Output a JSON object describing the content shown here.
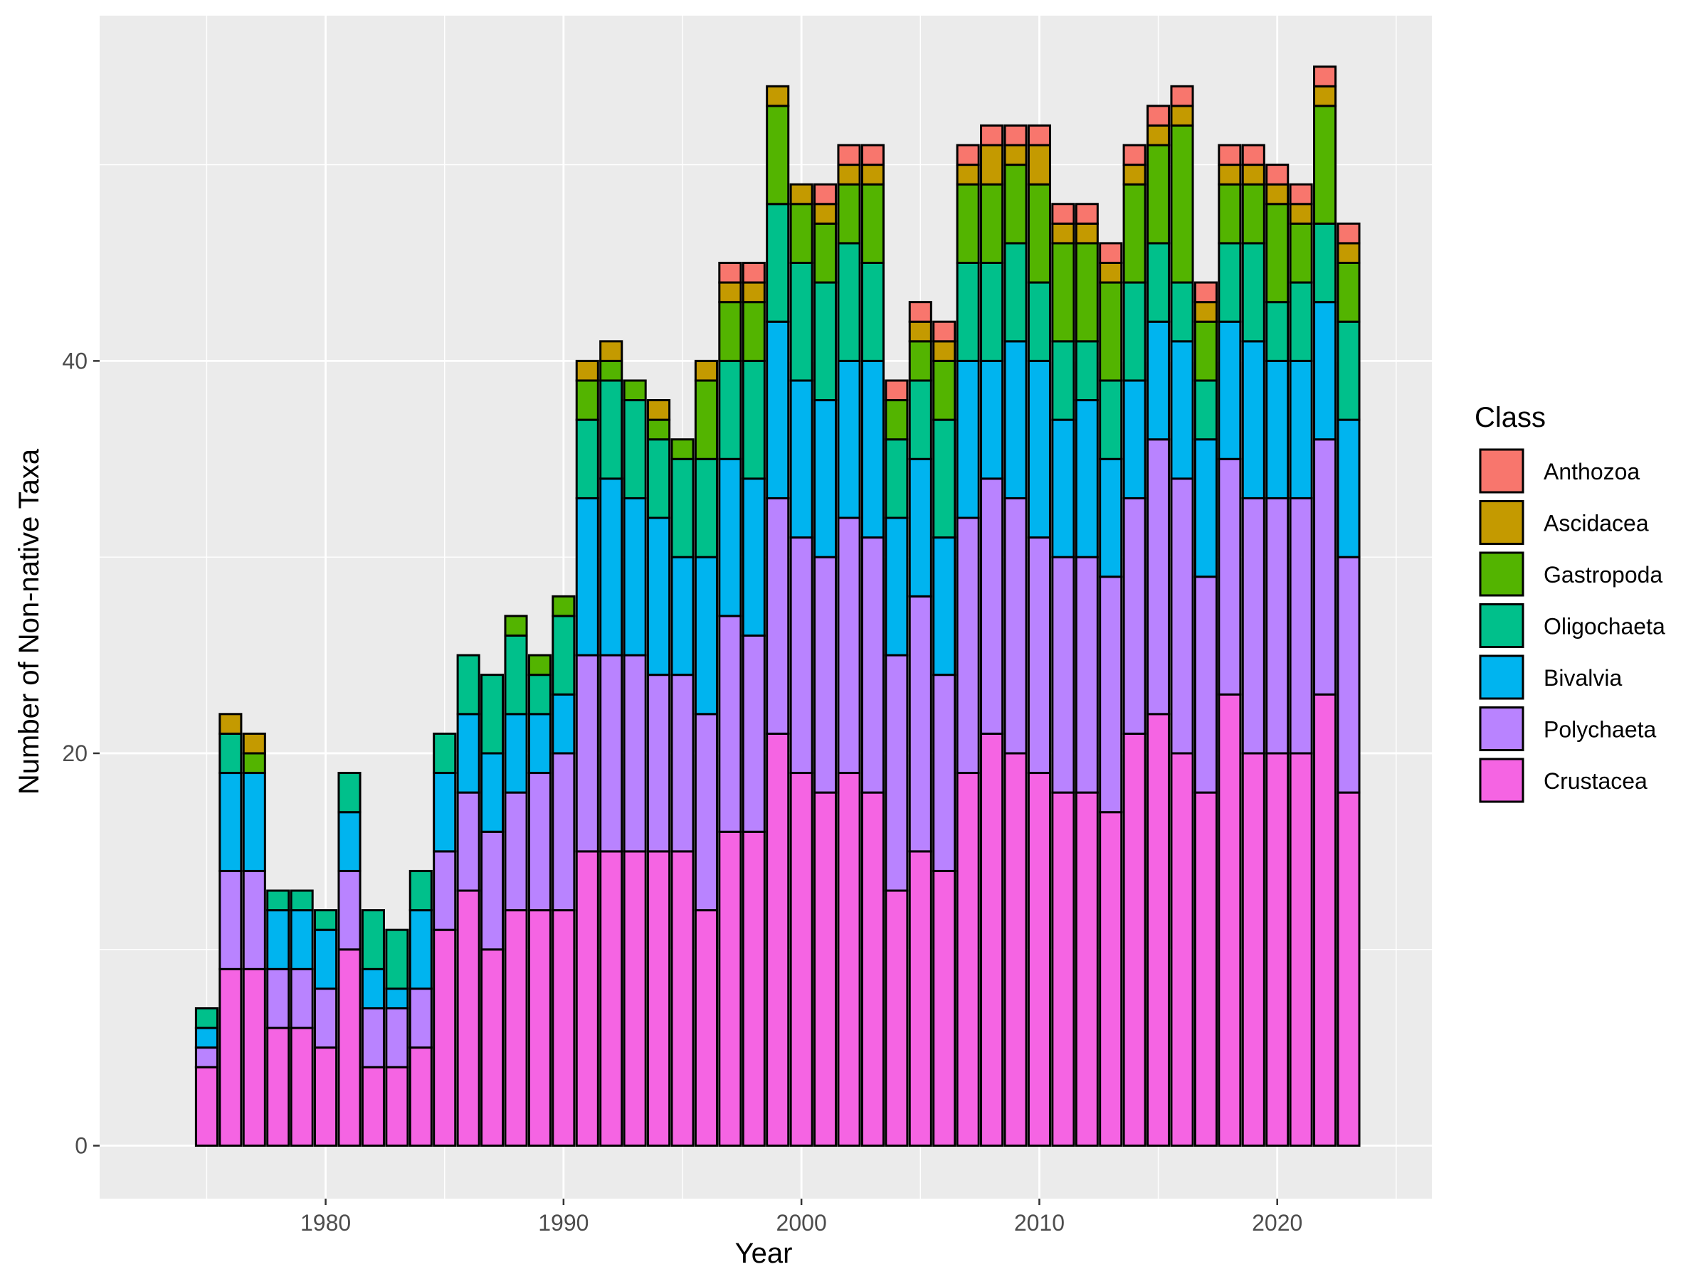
{
  "chart_data": {
    "type": "bar",
    "stacked": true,
    "xlabel": "Year",
    "ylabel": "Number of Non-native Taxa",
    "xlim": [
      1970.5,
      2026.5
    ],
    "ylim": [
      -2.7,
      57.6
    ],
    "x_ticks": [
      "1980",
      "1990",
      "2000",
      "2010",
      "2020"
    ],
    "x_tick_values": [
      1980,
      1990,
      2000,
      2010,
      2020
    ],
    "y_ticks": [
      "0",
      "20",
      "40"
    ],
    "y_tick_values": [
      0,
      20,
      40
    ],
    "grid": true,
    "legend_position": "right",
    "legend_title": "Class",
    "years": [
      1975,
      1976,
      1977,
      1978,
      1979,
      1980,
      1981,
      1982,
      1983,
      1984,
      1985,
      1986,
      1987,
      1988,
      1989,
      1990,
      1991,
      1992,
      1993,
      1994,
      1995,
      1996,
      1997,
      1998,
      1999,
      2000,
      2001,
      2002,
      2003,
      2004,
      2005,
      2006,
      2007,
      2008,
      2009,
      2010,
      2011,
      2012,
      2013,
      2014,
      2015,
      2016,
      2017,
      2018,
      2019,
      2020,
      2021,
      2022,
      2023
    ],
    "series": [
      {
        "name": "Crustacea",
        "color": "#F564E3",
        "values": [
          4,
          9,
          9,
          6,
          6,
          5,
          10,
          4,
          4,
          5,
          11,
          13,
          10,
          12,
          12,
          12,
          15,
          15,
          15,
          15,
          15,
          12,
          16,
          16,
          21,
          19,
          18,
          19,
          18,
          13,
          15,
          14,
          19,
          21,
          20,
          19,
          18,
          18,
          17,
          21,
          22,
          20,
          18,
          23,
          20,
          20,
          20,
          23,
          18
        ]
      },
      {
        "name": "Polychaeta",
        "color": "#B983FF",
        "values": [
          1,
          5,
          5,
          3,
          3,
          3,
          4,
          3,
          3,
          3,
          4,
          5,
          6,
          6,
          7,
          8,
          10,
          10,
          10,
          9,
          9,
          10,
          11,
          10,
          12,
          12,
          12,
          13,
          13,
          12,
          13,
          10,
          13,
          13,
          13,
          12,
          12,
          12,
          12,
          12,
          14,
          14,
          11,
          12,
          13,
          13,
          13,
          13,
          12
        ]
      },
      {
        "name": "Bivalvia",
        "color": "#00B4EF",
        "values": [
          1,
          5,
          5,
          3,
          3,
          3,
          3,
          2,
          1,
          4,
          4,
          4,
          4,
          4,
          3,
          3,
          8,
          9,
          8,
          8,
          6,
          8,
          8,
          8,
          9,
          8,
          8,
          8,
          9,
          7,
          7,
          7,
          8,
          6,
          8,
          9,
          7,
          8,
          6,
          6,
          6,
          7,
          7,
          7,
          8,
          7,
          7,
          7,
          7
        ]
      },
      {
        "name": "Oligochaeta",
        "color": "#00C08B",
        "values": [
          1,
          2,
          0,
          1,
          1,
          1,
          2,
          3,
          3,
          2,
          2,
          3,
          4,
          4,
          2,
          4,
          4,
          5,
          5,
          4,
          5,
          5,
          5,
          6,
          6,
          6,
          6,
          6,
          5,
          4,
          4,
          6,
          5,
          5,
          5,
          4,
          4,
          3,
          4,
          5,
          4,
          3,
          3,
          4,
          5,
          3,
          4,
          4,
          5
        ]
      },
      {
        "name": "Gastropoda",
        "color": "#53B400",
        "values": [
          0,
          0,
          1,
          0,
          0,
          0,
          0,
          0,
          0,
          0,
          0,
          0,
          0,
          1,
          1,
          1,
          2,
          1,
          1,
          1,
          1,
          4,
          3,
          3,
          5,
          3,
          3,
          3,
          4,
          2,
          2,
          3,
          4,
          4,
          4,
          5,
          5,
          5,
          5,
          5,
          5,
          8,
          3,
          3,
          3,
          5,
          3,
          6,
          3
        ]
      },
      {
        "name": "Ascidacea",
        "color": "#C49A00",
        "values": [
          0,
          1,
          1,
          0,
          0,
          0,
          0,
          0,
          0,
          0,
          0,
          0,
          0,
          0,
          0,
          0,
          1,
          1,
          0,
          1,
          0,
          1,
          1,
          1,
          1,
          1,
          1,
          1,
          1,
          0,
          1,
          1,
          1,
          2,
          1,
          2,
          1,
          1,
          1,
          1,
          1,
          1,
          1,
          1,
          1,
          1,
          1,
          1,
          1
        ]
      },
      {
        "name": "Anthozoa",
        "color": "#F8766D",
        "values": [
          0,
          0,
          0,
          0,
          0,
          0,
          0,
          0,
          0,
          0,
          0,
          0,
          0,
          0,
          0,
          0,
          0,
          0,
          0,
          0,
          0,
          0,
          1,
          1,
          0,
          0,
          1,
          1,
          1,
          1,
          1,
          1,
          1,
          1,
          1,
          1,
          1,
          1,
          1,
          1,
          1,
          1,
          1,
          1,
          1,
          1,
          1,
          1,
          1
        ]
      }
    ],
    "legend_order": [
      "Anthozoa",
      "Ascidacea",
      "Gastropoda",
      "Oligochaeta",
      "Bivalvia",
      "Polychaeta",
      "Crustacea"
    ]
  }
}
